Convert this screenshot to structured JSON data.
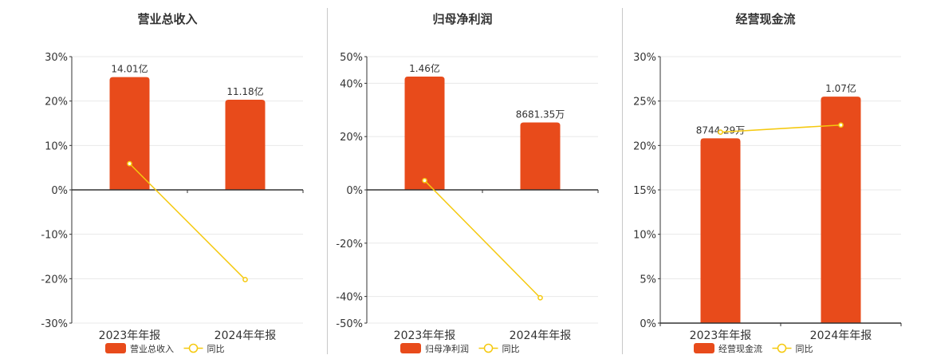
{
  "colors": {
    "bar": "#E84B1B",
    "line": "#F5C90F",
    "axis": "#333333",
    "grid": "#e8e8e8",
    "text": "#333333"
  },
  "legend": {
    "bar_icon": "rounded-rect",
    "line_icon": "line-circle"
  },
  "chart_data": [
    {
      "type": "bar",
      "title": "营业总收入",
      "categories": [
        "2023年年报",
        "2024年年报"
      ],
      "ylim": [
        -30,
        30
      ],
      "yticks": [
        30,
        20,
        10,
        0,
        -10,
        -20,
        -30
      ],
      "ytick_labels": [
        "30%",
        "20%",
        "10%",
        "0%",
        "-10%",
        "-20%",
        "-30%"
      ],
      "series": [
        {
          "name": "营业总收入",
          "kind": "bar",
          "values": [
            25.4,
            20.3
          ],
          "data_labels": [
            "14.01亿",
            "11.18亿"
          ]
        },
        {
          "name": "同比",
          "kind": "line",
          "values": [
            5.9,
            -20.2
          ]
        }
      ],
      "grid": true,
      "legend_position": "bottom"
    },
    {
      "type": "bar",
      "title": "归母净利润",
      "categories": [
        "2023年年报",
        "2024年年报"
      ],
      "ylim": [
        -50,
        50
      ],
      "yticks": [
        50,
        40,
        20,
        0,
        -20,
        -40,
        -50
      ],
      "ytick_labels": [
        "50%",
        "40%",
        "20%",
        "0%",
        "-20%",
        "-40%",
        "-50%"
      ],
      "series": [
        {
          "name": "归母净利润",
          "kind": "bar",
          "values": [
            42.5,
            25.3
          ],
          "data_labels": [
            "1.46亿",
            "8681.35万"
          ]
        },
        {
          "name": "同比",
          "kind": "line",
          "values": [
            3.5,
            -40.5
          ]
        }
      ],
      "grid": true,
      "legend_position": "bottom"
    },
    {
      "type": "bar",
      "title": "经营现金流",
      "categories": [
        "2023年年报",
        "2024年年报"
      ],
      "ylim": [
        0,
        30
      ],
      "yticks": [
        30,
        25,
        20,
        15,
        10,
        5,
        0
      ],
      "ytick_labels": [
        "30%",
        "25%",
        "20%",
        "15%",
        "10%",
        "5%",
        "0%"
      ],
      "series": [
        {
          "name": "经营现金流",
          "kind": "bar",
          "values": [
            20.8,
            25.5
          ],
          "data_labels": [
            "8744.29万",
            "1.07亿"
          ]
        },
        {
          "name": "同比",
          "kind": "line",
          "values": [
            21.5,
            22.3
          ]
        }
      ],
      "grid": true,
      "legend_position": "bottom"
    }
  ]
}
